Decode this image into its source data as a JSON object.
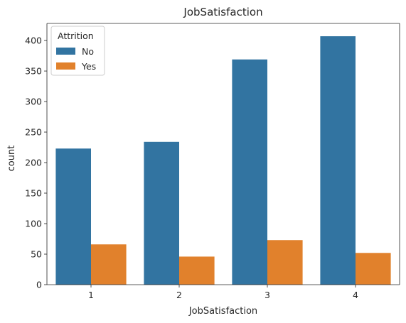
{
  "chart_data": {
    "type": "bar",
    "title": "JobSatisfaction",
    "xlabel": "JobSatisfaction",
    "ylabel": "count",
    "categories": [
      "1",
      "2",
      "3",
      "4"
    ],
    "series": [
      {
        "name": "No",
        "values": [
          223,
          234,
          369,
          407
        ],
        "color": "#3274a1"
      },
      {
        "name": "Yes",
        "values": [
          66,
          46,
          73,
          52
        ],
        "color": "#e1812c"
      }
    ],
    "ylim": [
      0,
      428
    ],
    "yticks": [
      0,
      50,
      100,
      150,
      200,
      250,
      300,
      350,
      400
    ],
    "legend": {
      "title": "Attrition",
      "placement": "top-left"
    },
    "grid": false
  }
}
